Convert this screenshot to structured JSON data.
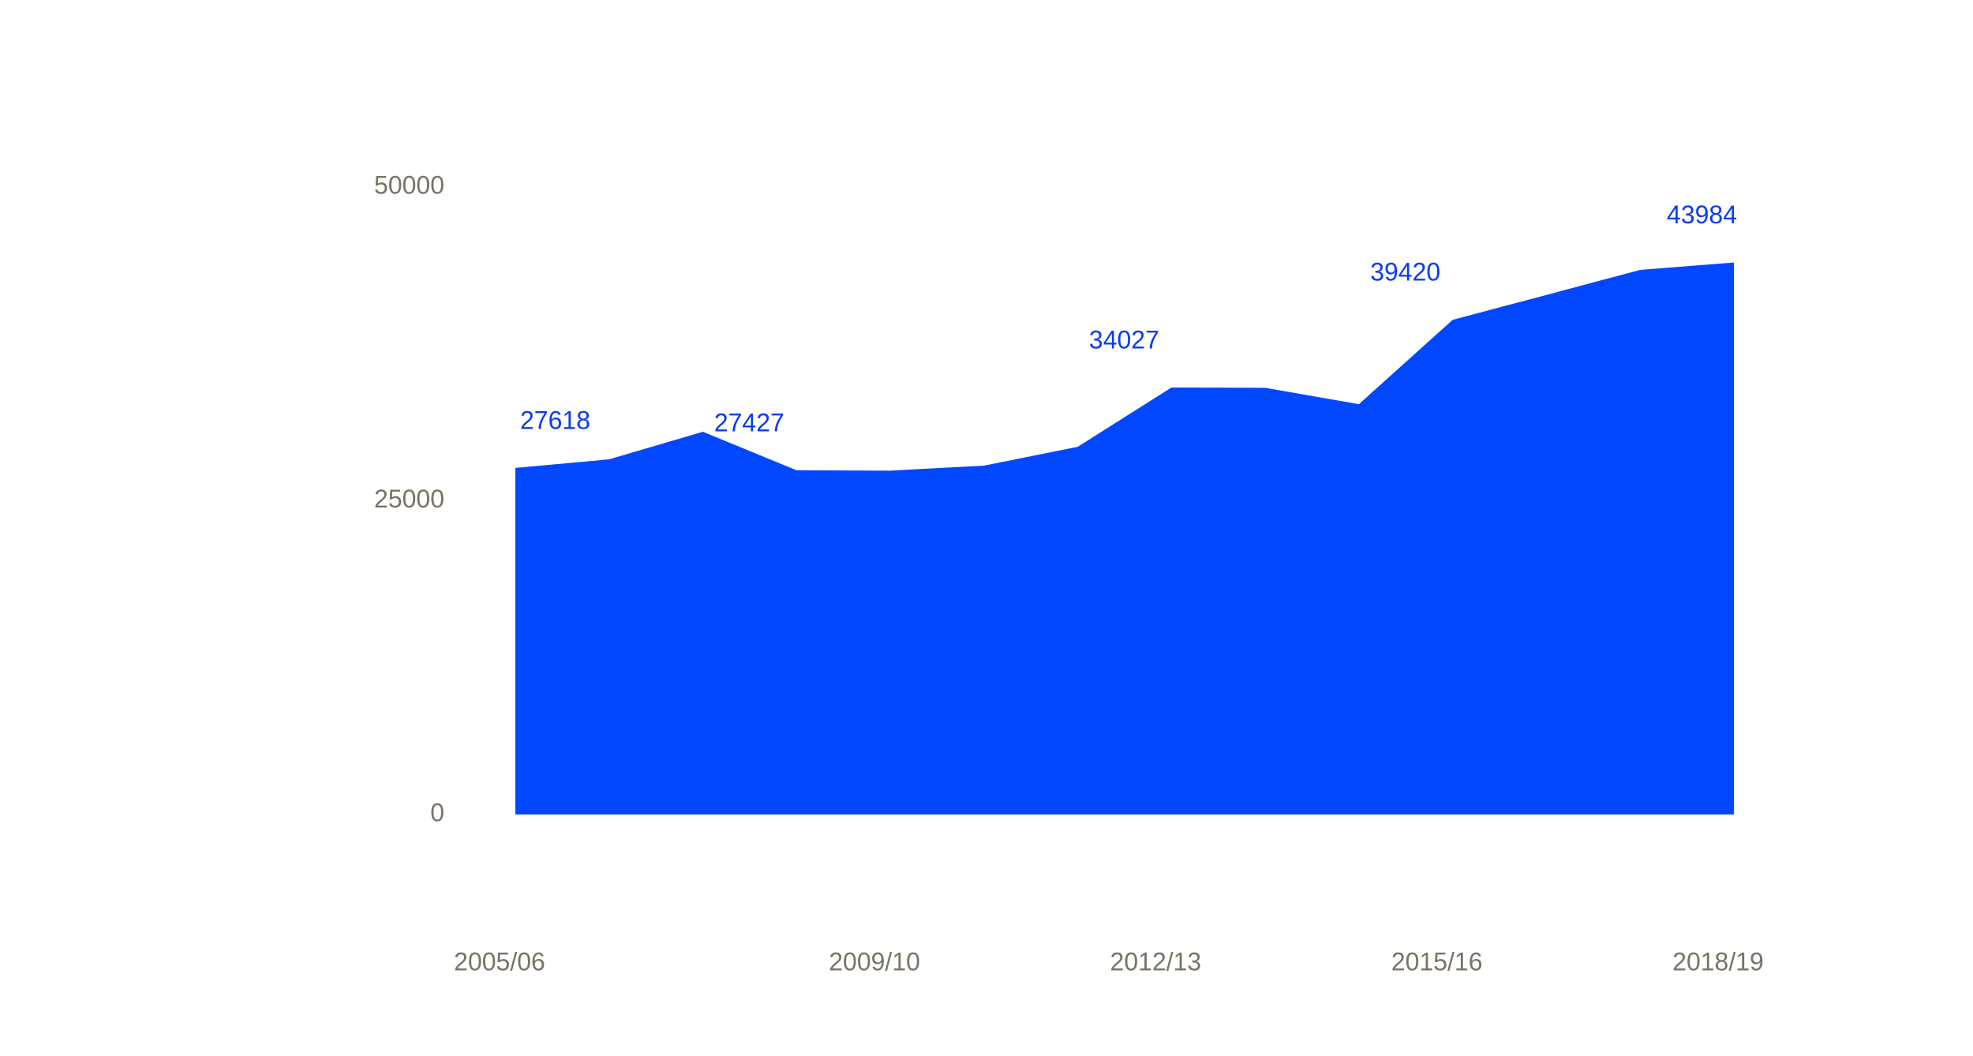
{
  "chart_data": {
    "type": "area",
    "categories": [
      "2005/06",
      null,
      null,
      null,
      "2009/10",
      null,
      null,
      "2012/13",
      null,
      null,
      "2015/16",
      null,
      null,
      "2018/19"
    ],
    "series": [
      {
        "color": "#0047ff",
        "values": [
          27618,
          28300,
          30500,
          27427,
          27400,
          27800,
          29300,
          34027,
          34000,
          32700,
          39420,
          41400,
          43400,
          43984
        ],
        "value_labels": [
          "27618",
          null,
          null,
          "27427",
          null,
          null,
          null,
          "34027",
          null,
          null,
          "39420",
          null,
          null,
          "43984"
        ]
      }
    ],
    "ylim": [
      0,
      50000
    ],
    "yticks": [
      0,
      25000,
      50000
    ],
    "grid": false
  }
}
